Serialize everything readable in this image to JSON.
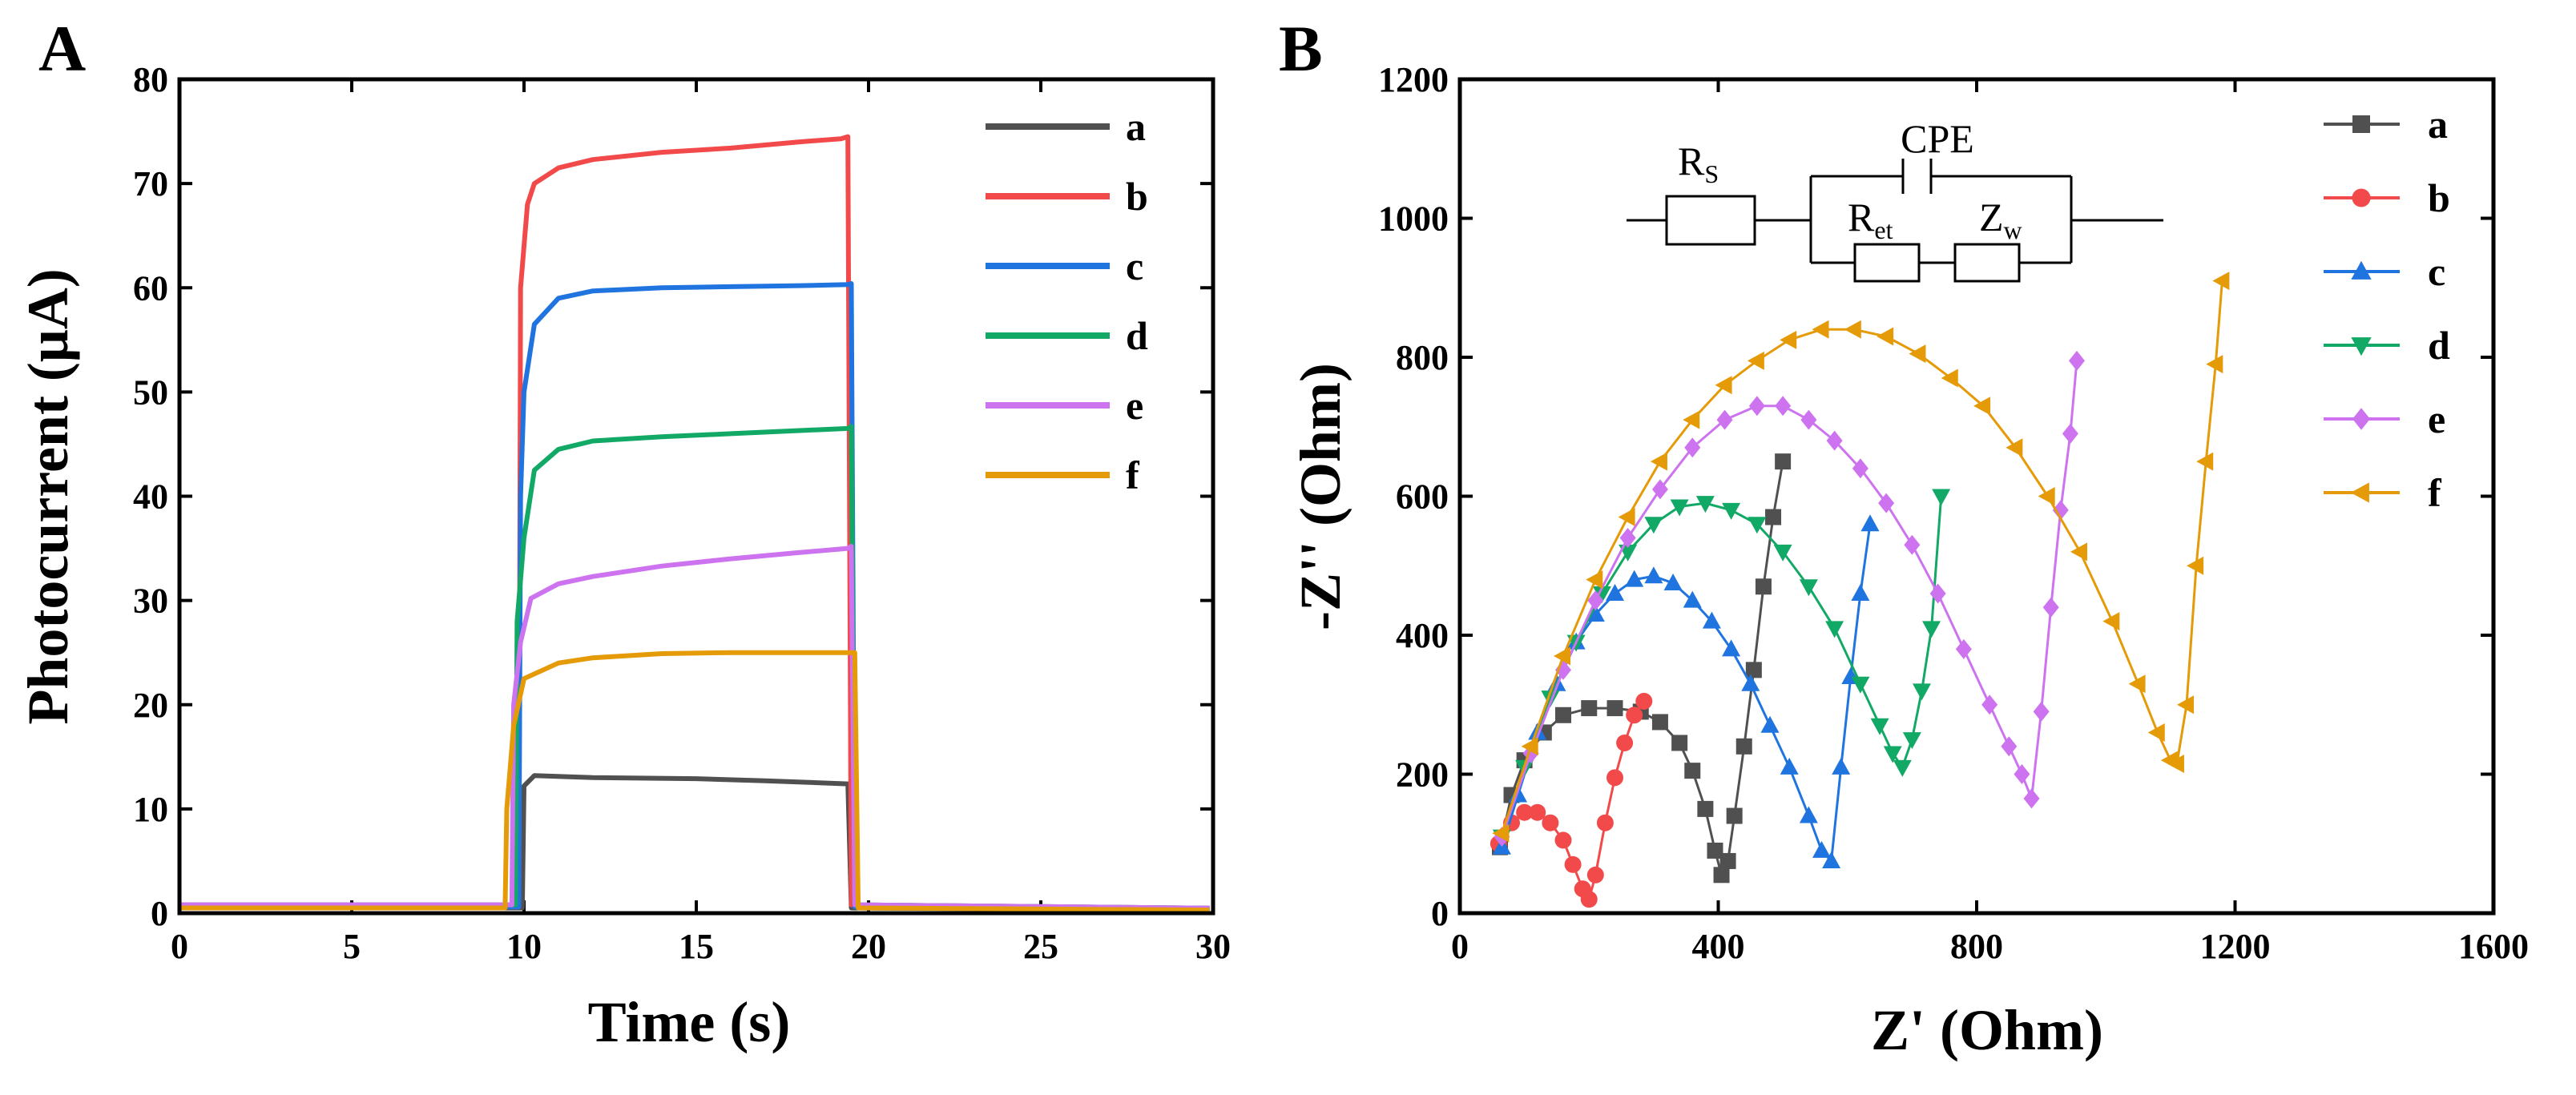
{
  "colors": {
    "a": "#505050",
    "b": "#f24a4a",
    "c": "#1f74e0",
    "d": "#12a866",
    "e": "#cd73f0",
    "f": "#e59a08",
    "axis": "#000000",
    "background": "#ffffff"
  },
  "chart_data": [
    {
      "panel_label": "A",
      "type": "line",
      "title": "",
      "xlabel": "Time (s)",
      "ylabel": "Photocurrent (μA)",
      "xlim": [
        0,
        30
      ],
      "ylim": [
        0,
        80
      ],
      "xticks": [
        "0",
        "5",
        "10",
        "15",
        "20",
        "25",
        "30"
      ],
      "yticks": [
        "0",
        "10",
        "20",
        "30",
        "40",
        "50",
        "60",
        "70",
        "80"
      ],
      "legend_position": "top-right",
      "series": [
        {
          "name": "a",
          "key": "a",
          "on_start": 10.0,
          "off_end": 19.5,
          "baseline": 0.5,
          "values_x": [
            10.0,
            10.3,
            12,
            15,
            17,
            19.4
          ],
          "values_y": [
            12.2,
            13.2,
            13.0,
            12.9,
            12.7,
            12.4
          ]
        },
        {
          "name": "b",
          "key": "b",
          "on_start": 9.9,
          "off_end": 19.5,
          "baseline": 0.8,
          "values_x": [
            9.9,
            10.1,
            10.3,
            11,
            12,
            14,
            16,
            18,
            19.2,
            19.4
          ],
          "values_y": [
            60,
            68,
            70,
            71.5,
            72.3,
            73,
            73.4,
            74.0,
            74.3,
            74.5
          ]
        },
        {
          "name": "c",
          "key": "c",
          "on_start": 9.9,
          "off_end": 19.6,
          "baseline": 0.6,
          "values_x": [
            9.9,
            10.0,
            10.3,
            11,
            12,
            14,
            16,
            18,
            19.4,
            19.5
          ],
          "values_y": [
            40,
            50,
            56.5,
            59,
            59.7,
            60.0,
            60.1,
            60.2,
            60.3,
            60.4
          ]
        },
        {
          "name": "d",
          "key": "d",
          "on_start": 9.8,
          "off_end": 19.6,
          "baseline": 0.8,
          "values_x": [
            9.8,
            10.0,
            10.3,
            11,
            12,
            14,
            16,
            18,
            19.4,
            19.5
          ],
          "values_y": [
            28,
            36,
            42.5,
            44.5,
            45.3,
            45.7,
            46.0,
            46.3,
            46.5,
            46.7
          ]
        },
        {
          "name": "e",
          "key": "e",
          "on_start": 9.7,
          "off_end": 19.6,
          "baseline": 0.8,
          "values_x": [
            9.7,
            9.9,
            10.2,
            11,
            12,
            14,
            16,
            18,
            19.4,
            19.5
          ],
          "values_y": [
            20,
            26,
            30.2,
            31.6,
            32.3,
            33.3,
            34.0,
            34.6,
            35.0,
            35.2
          ]
        },
        {
          "name": "f",
          "key": "f",
          "on_start": 9.5,
          "off_end": 19.7,
          "baseline": 0.5,
          "values_x": [
            9.5,
            9.7,
            10.0,
            11,
            12,
            14,
            16,
            18,
            19.4,
            19.6
          ],
          "values_y": [
            10,
            18,
            22.5,
            24.0,
            24.5,
            24.9,
            25.0,
            25.0,
            25.0,
            25.0
          ]
        }
      ]
    },
    {
      "panel_label": "B",
      "type": "scatter",
      "title": "",
      "xlabel": "Z' (Ohm)",
      "ylabel": "-Z'' (Ohm)",
      "xlim": [
        0,
        1600
      ],
      "ylim": [
        0,
        1200
      ],
      "xticks": [
        "0",
        "400",
        "800",
        "1200",
        "1600"
      ],
      "yticks": [
        "0",
        "200",
        "400",
        "600",
        "800",
        "1000",
        "1200"
      ],
      "legend_position": "top-right",
      "inset_circuit": {
        "rs_main": "R",
        "rs_sub": "S",
        "cpe": "CPE",
        "ret_main": "R",
        "ret_sub": "et",
        "zw_main": "Z",
        "zw_sub": "w"
      },
      "series": [
        {
          "name": "a",
          "key": "a",
          "marker": "square",
          "x": [
            62,
            80,
            100,
            130,
            160,
            200,
            240,
            280,
            310,
            340,
            360,
            380,
            395,
            405,
            415,
            425,
            440,
            455,
            470,
            485,
            500
          ],
          "y": [
            95,
            170,
            220,
            260,
            285,
            295,
            295,
            290,
            275,
            245,
            205,
            150,
            90,
            55,
            75,
            140,
            240,
            350,
            470,
            570,
            650
          ]
        },
        {
          "name": "b",
          "key": "b",
          "marker": "circle",
          "x": [
            60,
            80,
            100,
            120,
            140,
            160,
            175,
            190,
            200,
            210,
            225,
            240,
            255,
            270,
            285
          ],
          "y": [
            100,
            130,
            145,
            145,
            130,
            105,
            70,
            35,
            20,
            55,
            130,
            195,
            245,
            285,
            305
          ]
        },
        {
          "name": "c",
          "key": "c",
          "marker": "triangle-up",
          "x": [
            65,
            90,
            120,
            150,
            180,
            210,
            240,
            270,
            300,
            330,
            360,
            390,
            420,
            450,
            480,
            510,
            540,
            560,
            575,
            590,
            605,
            620,
            635
          ],
          "y": [
            95,
            170,
            260,
            330,
            390,
            430,
            460,
            480,
            485,
            475,
            450,
            420,
            380,
            330,
            270,
            210,
            140,
            90,
            75,
            210,
            340,
            460,
            560
          ]
        },
        {
          "name": "d",
          "key": "d",
          "marker": "triangle-down",
          "x": [
            65,
            100,
            140,
            180,
            220,
            260,
            300,
            340,
            380,
            420,
            460,
            500,
            540,
            580,
            620,
            650,
            670,
            685,
            700,
            715,
            730,
            745
          ],
          "y": [
            110,
            210,
            310,
            390,
            460,
            520,
            560,
            585,
            590,
            580,
            560,
            520,
            470,
            410,
            330,
            270,
            230,
            210,
            250,
            320,
            410,
            600
          ]
        },
        {
          "name": "e",
          "key": "e",
          "marker": "diamond",
          "x": [
            65,
            110,
            160,
            210,
            260,
            310,
            360,
            410,
            460,
            500,
            540,
            580,
            620,
            660,
            700,
            740,
            780,
            820,
            850,
            870,
            885,
            900,
            915,
            930,
            945,
            955
          ],
          "y": [
            110,
            230,
            350,
            450,
            540,
            610,
            670,
            710,
            730,
            730,
            710,
            680,
            640,
            590,
            530,
            460,
            380,
            300,
            240,
            200,
            165,
            290,
            440,
            580,
            690,
            795
          ]
        },
        {
          "name": "f",
          "key": "f",
          "marker": "triangle-left",
          "x": [
            65,
            110,
            160,
            210,
            260,
            310,
            360,
            410,
            460,
            510,
            560,
            610,
            660,
            710,
            760,
            810,
            860,
            910,
            960,
            1010,
            1050,
            1080,
            1100,
            1110,
            1125,
            1140,
            1155,
            1170,
            1180
          ],
          "y": [
            115,
            240,
            370,
            480,
            570,
            650,
            710,
            760,
            795,
            825,
            840,
            840,
            830,
            805,
            770,
            730,
            670,
            600,
            520,
            420,
            330,
            260,
            220,
            215,
            300,
            500,
            650,
            790,
            910
          ]
        }
      ]
    }
  ]
}
